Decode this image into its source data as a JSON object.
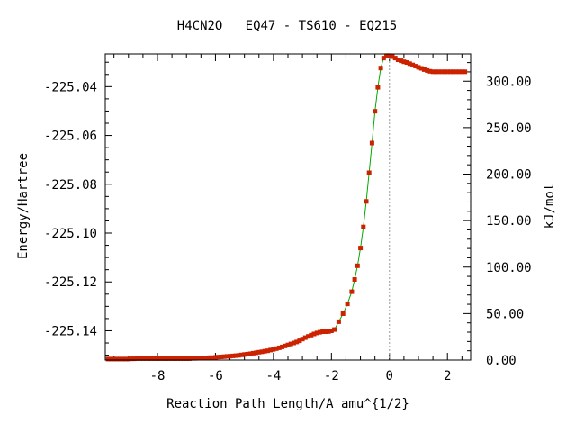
{
  "chart_data": {
    "type": "line",
    "title": "H4CN2O   EQ47 - TS610 - EQ215",
    "xlabel": "Reaction Path Length/A amu^{1/2}",
    "ylabel": "Energy/Hartree",
    "y2label": "kJ/mol",
    "xlim": [
      -9.8,
      2.8
    ],
    "ylim": [
      -225.152,
      -225.0266
    ],
    "y2lim": [
      0.0,
      329.3
    ],
    "x_ticks": [
      -8,
      -6,
      -4,
      -2,
      0,
      2
    ],
    "x_tick_labels": [
      "-8",
      "-6",
      "-4",
      "-2",
      "0",
      "2"
    ],
    "y_ticks": [
      -225.04,
      -225.06,
      -225.08,
      -225.1,
      -225.12,
      -225.14
    ],
    "y_tick_labels": [
      "-225.04",
      "-225.06",
      "-225.08",
      "-225.10",
      "-225.12",
      "-225.14"
    ],
    "y2_ticks": [
      300,
      250,
      200,
      150,
      100,
      50,
      0
    ],
    "y2_tick_labels": [
      "300.00",
      "250.00",
      "200.00",
      "150.00",
      "100.00",
      "50.00",
      "0.00"
    ],
    "ts_marker_x": 0.0,
    "grid": false,
    "colors": {
      "line": "#00aa00",
      "marker": "#cc2200",
      "ts_marker": "#999999",
      "frame": "#000000"
    },
    "series": [
      {
        "x": [
          -9.7,
          -9.6,
          -9.5,
          -9.4,
          -9.3,
          -9.2,
          -9.1,
          -9.0,
          -8.9,
          -8.8,
          -8.7,
          -8.6,
          -8.5,
          -8.4,
          -8.3,
          -8.2,
          -8.1,
          -8.0,
          -7.9,
          -7.8,
          -7.7,
          -7.6,
          -7.5,
          -7.4,
          -7.3,
          -7.2,
          -7.1,
          -7.0,
          -6.9,
          -6.8,
          -6.7,
          -6.6,
          -6.5,
          -6.4,
          -6.3,
          -6.2,
          -6.1,
          -6.0,
          -5.9,
          -5.8,
          -5.7,
          -5.6,
          -5.5,
          -5.4,
          -5.3,
          -5.2,
          -5.1,
          -5.0,
          -4.9,
          -4.8,
          -4.7,
          -4.6,
          -4.5,
          -4.4,
          -4.3,
          -4.2,
          -4.1,
          -4.0,
          -3.9,
          -3.8,
          -3.7,
          -3.6,
          -3.5,
          -3.4,
          -3.3,
          -3.2,
          -3.1,
          -3.0,
          -2.9,
          -2.8,
          -2.7,
          -2.6,
          -2.5,
          -2.4,
          -2.3,
          -2.2,
          -2.1,
          -2.0,
          -1.9,
          -1.75,
          -1.6,
          -1.45,
          -1.3,
          -1.2,
          -1.1,
          -1.0,
          -0.9,
          -0.8,
          -0.7,
          -0.6,
          -0.5,
          -0.4,
          -0.3,
          -0.2,
          -0.1,
          0.0,
          0.1,
          0.2,
          0.3,
          0.4,
          0.5,
          0.6,
          0.7,
          0.8,
          0.9,
          1.0,
          1.1,
          1.2,
          1.3,
          1.4,
          1.5,
          1.6,
          1.7,
          1.8,
          1.9,
          2.0,
          2.1,
          2.2,
          2.3,
          2.4,
          2.5,
          2.6
        ],
        "y": [
          -225.1516,
          -225.1516,
          -225.1516,
          -225.1516,
          -225.1516,
          -225.1516,
          -225.1516,
          -225.1516,
          -225.1515,
          -225.1515,
          -225.1514,
          -225.1514,
          -225.1514,
          -225.1514,
          -225.1514,
          -225.1514,
          -225.1514,
          -225.1514,
          -225.1514,
          -225.1514,
          -225.1514,
          -225.1514,
          -225.1514,
          -225.1514,
          -225.1514,
          -225.1514,
          -225.1514,
          -225.1514,
          -225.1514,
          -225.1513,
          -225.1513,
          -225.1512,
          -225.1511,
          -225.1511,
          -225.1511,
          -225.151,
          -225.151,
          -225.1509,
          -225.1508,
          -225.1507,
          -225.1506,
          -225.1505,
          -225.1504,
          -225.1503,
          -225.1502,
          -225.1501,
          -225.1499,
          -225.1497,
          -225.1496,
          -225.1494,
          -225.1492,
          -225.149,
          -225.1488,
          -225.1486,
          -225.1484,
          -225.1482,
          -225.1479,
          -225.1476,
          -225.1473,
          -225.147,
          -225.1466,
          -225.1462,
          -225.1458,
          -225.1454,
          -225.145,
          -225.1446,
          -225.1441,
          -225.1434,
          -225.1428,
          -225.1423,
          -225.1418,
          -225.1413,
          -225.1409,
          -225.1406,
          -225.1404,
          -225.1404,
          -225.1403,
          -225.14,
          -225.1395,
          -225.1363,
          -225.133,
          -225.129,
          -225.124,
          -225.119,
          -225.1134,
          -225.1061,
          -225.0975,
          -225.087,
          -225.0753,
          -225.0631,
          -225.0501,
          -225.0403,
          -225.0324,
          -225.0283,
          -225.0273,
          -225.0273,
          -225.0277,
          -225.0283,
          -225.029,
          -225.0294,
          -225.0298,
          -225.0301,
          -225.0306,
          -225.0311,
          -225.0316,
          -225.0321,
          -225.0325,
          -225.033,
          -225.0334,
          -225.0337,
          -225.0339,
          -225.0339,
          -225.0339,
          -225.0339,
          -225.0339,
          -225.0339,
          -225.0339,
          -225.0339,
          -225.0339,
          -225.0339,
          -225.0339,
          -225.0339
        ]
      }
    ]
  }
}
